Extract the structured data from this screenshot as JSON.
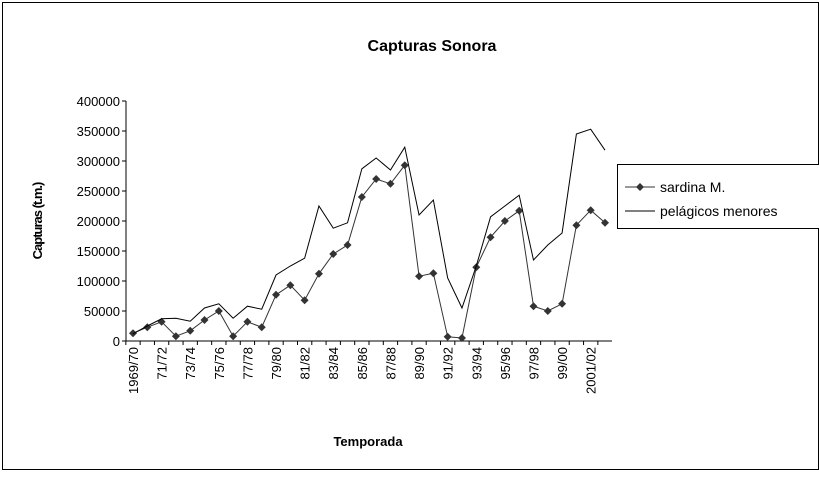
{
  "chart_data": {
    "type": "line",
    "title": "Capturas Sonora",
    "x_label": "Temporada",
    "y_label": "Capturas (t.m.)",
    "categories": [
      "1969/70",
      null,
      "71/72",
      null,
      "73/74",
      null,
      "75/76",
      null,
      "77/78",
      null,
      "79/80",
      null,
      "81/82",
      null,
      "83/84",
      null,
      "85/86",
      null,
      "87/88",
      null,
      "89/90",
      null,
      "91/92",
      null,
      "93/94",
      null,
      "95/96",
      null,
      "97/98",
      null,
      "99/00",
      null,
      "2001/02",
      null
    ],
    "series": [
      {
        "name": "sardina M.",
        "color": "#333333",
        "marker": "diamond",
        "values": [
          13000,
          23000,
          32000,
          8000,
          17000,
          35000,
          50000,
          8000,
          32000,
          23000,
          77000,
          93000,
          68000,
          112000,
          145000,
          160000,
          240000,
          270000,
          262000,
          293000,
          108000,
          113000,
          7000,
          5000,
          123000,
          173000,
          200000,
          217000,
          58000,
          50000,
          62000,
          193000,
          218000,
          197000
        ]
      },
      {
        "name": "pelágicos menores",
        "color": "#000000",
        "values": [
          12000,
          25000,
          37000,
          38000,
          33000,
          55000,
          62000,
          38000,
          58000,
          53000,
          110000,
          125000,
          138000,
          225000,
          188000,
          197000,
          287000,
          305000,
          285000,
          323000,
          210000,
          235000,
          105000,
          55000,
          125000,
          207000,
          225000,
          243000,
          135000,
          160000,
          180000,
          345000,
          353000,
          318000
        ]
      }
    ],
    "ylim": [
      0,
      400000
    ],
    "yticks": [
      0,
      50000,
      100000,
      150000,
      200000,
      250000,
      300000,
      350000,
      400000
    ],
    "legend": "right"
  }
}
